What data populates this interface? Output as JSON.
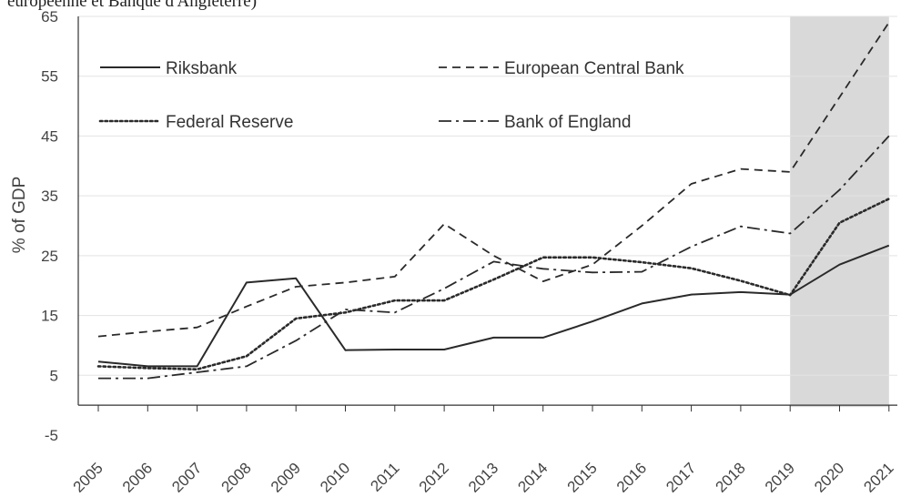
{
  "caption": "européenne et Banque d'Angleterre)",
  "chart_data": {
    "type": "line",
    "ylabel": "% of GDP",
    "ylim": [
      -5,
      65
    ],
    "yticks": [
      65,
      55,
      45,
      35,
      25,
      15,
      5,
      -5
    ],
    "x": [
      "2005",
      "2006",
      "2007",
      "2008",
      "2009",
      "2010",
      "2011",
      "2012",
      "2013",
      "2014",
      "2015",
      "2016",
      "2017",
      "2018",
      "2019",
      "2020",
      "2021"
    ],
    "shaded_region": {
      "from": "2019",
      "to": "2021",
      "color": "#d9d9d9"
    },
    "grid": "horizontal",
    "legend_position": "top-left, two columns",
    "series": [
      {
        "name": "Riksbank",
        "style": "solid",
        "values": [
          7.3,
          6.5,
          6.5,
          20.5,
          21.2,
          9.2,
          9.3,
          9.3,
          11.3,
          11.3,
          14.0,
          17.0,
          18.5,
          18.9,
          18.5,
          23.5,
          26.7
        ]
      },
      {
        "name": "European Central Bank",
        "style": "dashed",
        "values": [
          11.5,
          12.3,
          13.0,
          16.5,
          19.8,
          20.5,
          21.5,
          30.3,
          25.0,
          20.7,
          23.5,
          30.0,
          37.0,
          39.5,
          39.0,
          51.5,
          64.0
        ]
      },
      {
        "name": "Federal Reserve",
        "style": "dotted",
        "values": [
          6.5,
          6.2,
          6.0,
          8.2,
          14.5,
          15.5,
          17.5,
          17.5,
          21.0,
          24.7,
          24.7,
          23.9,
          22.9,
          20.8,
          18.4,
          30.5,
          34.5
        ]
      },
      {
        "name": "Bank of England",
        "style": "dashdot",
        "values": [
          4.5,
          4.5,
          5.5,
          6.5,
          10.8,
          16.0,
          15.5,
          19.5,
          24.0,
          22.8,
          22.2,
          22.3,
          26.5,
          29.9,
          28.7,
          36.0,
          45.0
        ]
      }
    ],
    "colors": {
      "line": "#2a2a2a",
      "grid": "#e3e3e3",
      "axis": "#333333",
      "shade": "#d9d9d9"
    }
  }
}
